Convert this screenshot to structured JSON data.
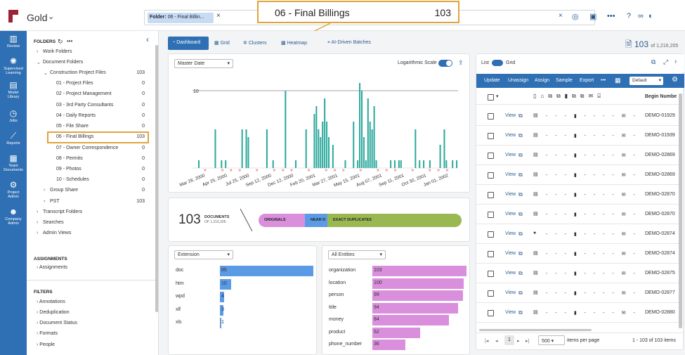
{
  "app": {
    "workspace": "Gold",
    "logo_icon": "r",
    "brand_color": "#2f6fb4"
  },
  "search": {
    "chip_label": "Folder:",
    "chip_value": "06 - Final Billin...",
    "close": "×"
  },
  "callout": {
    "name": "06 - Final Billings",
    "count": "103"
  },
  "leftnav": [
    {
      "label1": "Review",
      "label2": "",
      "icon": "bar-chart-icon"
    },
    {
      "label1": "Supervised",
      "label2": "Learning",
      "icon": "lightbulb-icon"
    },
    {
      "label1": "Model",
      "label2": "Library",
      "icon": "library-icon"
    },
    {
      "label1": "Jobs",
      "label2": "",
      "icon": "clock-icon"
    },
    {
      "label1": "Reports",
      "label2": "",
      "icon": "line-chart-icon"
    },
    {
      "label1": "Team",
      "label2": "Documents",
      "icon": "documents-icon"
    },
    {
      "label1": "Project",
      "label2": "Admin",
      "icon": "gear-icon"
    },
    {
      "label1": "Company",
      "label2": "Admin",
      "icon": "people-icon"
    }
  ],
  "folders": {
    "section_title": "FOLDERS",
    "items": [
      {
        "label": "Work Folders",
        "count": ""
      },
      {
        "label": "Document Folders",
        "count": ""
      },
      {
        "label": "Construction Project Files",
        "count": "103"
      },
      {
        "label": "01 - Project Files",
        "count": "0"
      },
      {
        "label": "02 - Project Management",
        "count": "0"
      },
      {
        "label": "03 - 3rd Party Consultants",
        "count": "0"
      },
      {
        "label": "04 - Daily Reports",
        "count": "0"
      },
      {
        "label": "05 - File Share",
        "count": "0"
      },
      {
        "label": "06 - Final Billings",
        "count": "103"
      },
      {
        "label": "07 - Owner Correspondence",
        "count": "0"
      },
      {
        "label": "08 - Permits",
        "count": "0"
      },
      {
        "label": "09 - Photos",
        "count": "0"
      },
      {
        "label": "10 - Schedules",
        "count": "0"
      },
      {
        "label": "Group Share",
        "count": "0"
      },
      {
        "label": "PST",
        "count": "103"
      },
      {
        "label": "Transcript Folders",
        "count": ""
      },
      {
        "label": "Searches",
        "count": ""
      },
      {
        "label": "Admin Views",
        "count": ""
      }
    ],
    "assignments_title": "ASSIGNMENTS",
    "assignments": [
      "Assignments"
    ],
    "filters_title": "FILTERS",
    "filters": [
      "Annotations",
      "Deduplication",
      "Document Status",
      "Formats",
      "People"
    ]
  },
  "tabs": [
    "Dashboard",
    "Grid",
    "Clusters",
    "Heatmap",
    "AI-Driven Batches"
  ],
  "doc_count": {
    "value": "103",
    "of": "of 1,216,205"
  },
  "timeline": {
    "date_select": "Master Date",
    "log_label": "Logarithmic Scale"
  },
  "chart_data": {
    "type": "bar",
    "title": "",
    "y_reference_label": "10",
    "x_tick_labels": [
      "Mar 28, 2000",
      "Apr 25, 2000",
      "Jul 25, 2000",
      "Sep 12, 2000",
      "Dec 12, 2000",
      "Feb 20, 2001",
      "Mar 27, 2001",
      "May 15, 2001",
      "Aug 07, 2001",
      "Sep 11, 2001",
      "Oct 30, 2001",
      "Jan 01, 2002"
    ],
    "values": [
      1,
      0,
      0,
      0,
      0,
      0,
      0,
      0,
      5,
      0,
      0,
      1,
      0,
      1,
      0,
      0,
      0,
      0,
      0,
      0,
      0,
      5,
      0,
      5,
      4,
      0,
      0,
      0,
      0,
      0,
      0,
      0,
      0,
      5,
      0,
      0,
      1,
      0,
      0,
      0,
      0,
      0,
      10,
      0,
      0,
      0,
      0,
      1,
      0,
      0,
      0,
      0,
      5,
      0,
      0,
      0,
      7,
      8,
      5,
      4,
      6,
      9,
      6,
      4,
      0,
      3,
      0,
      0,
      0,
      0,
      0,
      1,
      0,
      0,
      0,
      6,
      0,
      1,
      11,
      10,
      4,
      1,
      9,
      6,
      5,
      8,
      1,
      0,
      0,
      0,
      0,
      0,
      0,
      1,
      0,
      1,
      0,
      1,
      1,
      0,
      0,
      0,
      0,
      0,
      0,
      5,
      0,
      1,
      0,
      1,
      0,
      0,
      1,
      0,
      0,
      0,
      0,
      3,
      0,
      5,
      1,
      0,
      0,
      1,
      0,
      1
    ]
  },
  "dedup": {
    "count": "103",
    "label": "DOCUMENTS",
    "of": "OF 1,216,205",
    "segments": [
      "ORIGINALS",
      "NEAR D",
      "EXACT DUPLICATES"
    ],
    "colors": [
      "#d98fdc",
      "#5b9be6",
      "#9ab852"
    ]
  },
  "extension": {
    "select": "Extension",
    "items": [
      {
        "label": "doc",
        "value": 85
      },
      {
        "label": "htm",
        "value": 10
      },
      {
        "label": "wpd",
        "value": 4
      },
      {
        "label": "xlf",
        "value": 3
      },
      {
        "label": "xls",
        "value": 1
      }
    ],
    "color": "#5b9be6"
  },
  "entities": {
    "select": "All Entities",
    "items": [
      {
        "label": "organization",
        "value": 103
      },
      {
        "label": "location",
        "value": 100
      },
      {
        "label": "person",
        "value": 99
      },
      {
        "label": "title",
        "value": 94
      },
      {
        "label": "money",
        "value": 84
      },
      {
        "label": "product",
        "value": 52
      },
      {
        "label": "phone_number",
        "value": 36
      }
    ],
    "color": "#d98fdc"
  },
  "grid": {
    "list_label": "List",
    "grid_label": "Grid",
    "toolbar": [
      "Update",
      "Unassign",
      "Assign",
      "Sample",
      "Export"
    ],
    "view_select": "Default",
    "column_header": "Begin Numbe",
    "view_label": "View",
    "rows": [
      "DEMO-01929",
      "DEMO-01939",
      "DEMO-02869",
      "DEMO-02869",
      "DEMO-02870",
      "DEMO-02870",
      "DEMO-02874",
      "DEMO-02874",
      "DEMO-02875",
      "DEMO-02877",
      "DEMO-02880"
    ],
    "pager": {
      "page": "1",
      "size": "500",
      "per_page": "items per page",
      "range": "1 - 103 of 103 items"
    }
  }
}
